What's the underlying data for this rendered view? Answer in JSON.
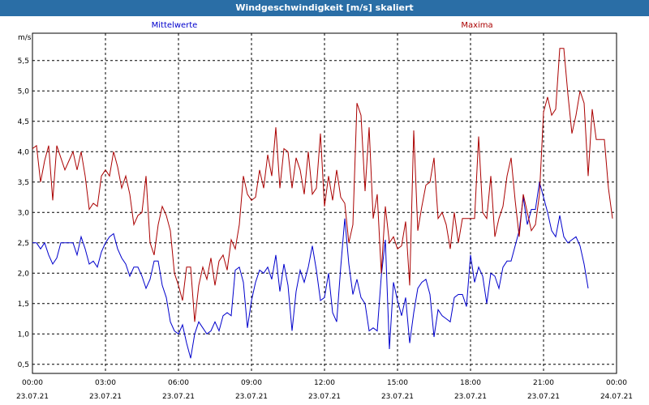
{
  "window": {
    "title": "Windgeschwindigkeit [m/s] skaliert"
  },
  "chart_data": {
    "type": "line",
    "title": "Windgeschwindigkeit [m/s] skaliert",
    "ylabel": "m/s",
    "xlabel": "",
    "ylim": [
      0.35,
      5.95
    ],
    "xlim": [
      0,
      24
    ],
    "grid": true,
    "y_ticks": [
      {
        "value": 0.5,
        "label": "0,5"
      },
      {
        "value": 1.0,
        "label": "1,0"
      },
      {
        "value": 1.5,
        "label": "1,5"
      },
      {
        "value": 2.0,
        "label": "2,0"
      },
      {
        "value": 2.5,
        "label": "2,5"
      },
      {
        "value": 3.0,
        "label": "3,0"
      },
      {
        "value": 3.5,
        "label": "3,5"
      },
      {
        "value": 4.0,
        "label": "4,0"
      },
      {
        "value": 4.5,
        "label": "4,5"
      },
      {
        "value": 5.0,
        "label": "5,0"
      },
      {
        "value": 5.5,
        "label": "5,5"
      }
    ],
    "x_ticks": [
      {
        "value": 0,
        "time": "00:00",
        "date": "23.07.21"
      },
      {
        "value": 3,
        "time": "03:00",
        "date": "23.07.21"
      },
      {
        "value": 6,
        "time": "06:00",
        "date": "23.07.21"
      },
      {
        "value": 9,
        "time": "09:00",
        "date": "23.07.21"
      },
      {
        "value": 12,
        "time": "12:00",
        "date": "23.07.21"
      },
      {
        "value": 15,
        "time": "15:00",
        "date": "23.07.21"
      },
      {
        "value": 18,
        "time": "18:00",
        "date": "23.07.21"
      },
      {
        "value": 21,
        "time": "21:00",
        "date": "23.07.21"
      },
      {
        "value": 24,
        "time": "00:00",
        "date": "24.07.21"
      }
    ],
    "x_step_hours": 0.16667,
    "series": [
      {
        "name": "Mittelwerte",
        "color": "#0000cc",
        "values": [
          2.5,
          2.5,
          2.4,
          2.5,
          2.3,
          2.15,
          2.25,
          2.5,
          2.5,
          2.5,
          2.5,
          2.3,
          2.6,
          2.4,
          2.15,
          2.2,
          2.1,
          2.35,
          2.5,
          2.6,
          2.65,
          2.4,
          2.25,
          2.15,
          1.95,
          2.1,
          2.1,
          1.95,
          1.75,
          1.9,
          2.2,
          2.2,
          1.8,
          1.6,
          1.2,
          1.05,
          1.0,
          1.15,
          0.85,
          0.6,
          1.0,
          1.2,
          1.1,
          1.0,
          1.05,
          1.2,
          1.05,
          1.3,
          1.35,
          1.3,
          2.05,
          2.1,
          1.85,
          1.1,
          1.55,
          1.85,
          2.05,
          2.0,
          2.1,
          1.9,
          2.3,
          1.7,
          2.15,
          1.8,
          1.05,
          1.7,
          2.05,
          1.85,
          2.1,
          2.45,
          2.05,
          1.55,
          1.6,
          2.0,
          1.35,
          1.2,
          2.1,
          2.9,
          2.15,
          1.65,
          1.9,
          1.6,
          1.5,
          1.05,
          1.1,
          1.05,
          1.95,
          2.55,
          0.75,
          1.85,
          1.55,
          1.3,
          1.6,
          0.85,
          1.35,
          1.75,
          1.85,
          1.9,
          1.65,
          0.95,
          1.4,
          1.3,
          1.25,
          1.2,
          1.6,
          1.65,
          1.65,
          1.45,
          2.3,
          1.85,
          2.1,
          1.95,
          1.5,
          2.0,
          1.95,
          1.75,
          2.1,
          2.2,
          2.2,
          2.45,
          2.7,
          3.25,
          2.8,
          3.05,
          3.05,
          3.5,
          3.25,
          3.0,
          2.7,
          2.6,
          2.95,
          2.6,
          2.5,
          2.55,
          2.6,
          2.45,
          2.15,
          1.75
        ]
      },
      {
        "name": "Maxima",
        "color": "#aa0000",
        "values": [
          4.05,
          4.1,
          3.5,
          3.85,
          4.1,
          3.2,
          4.1,
          3.9,
          3.7,
          3.85,
          4.0,
          3.7,
          4.0,
          3.6,
          3.05,
          3.15,
          3.1,
          3.6,
          3.7,
          3.6,
          4.0,
          3.75,
          3.4,
          3.6,
          3.3,
          2.8,
          2.95,
          3.0,
          3.6,
          2.5,
          2.3,
          2.8,
          3.1,
          2.95,
          2.7,
          2.0,
          1.8,
          1.55,
          2.1,
          2.1,
          1.2,
          1.8,
          2.1,
          1.9,
          2.25,
          1.8,
          2.2,
          2.3,
          2.05,
          2.55,
          2.4,
          2.8,
          3.6,
          3.3,
          3.2,
          3.25,
          3.7,
          3.4,
          3.95,
          3.6,
          4.4,
          3.4,
          4.05,
          4.0,
          3.4,
          3.9,
          3.7,
          3.3,
          4.0,
          3.3,
          3.4,
          4.3,
          3.1,
          3.6,
          3.2,
          3.7,
          3.25,
          3.15,
          2.5,
          2.8,
          4.8,
          4.6,
          3.35,
          4.4,
          2.9,
          3.3,
          2.0,
          3.1,
          2.5,
          2.6,
          2.4,
          2.45,
          2.85,
          1.8,
          4.35,
          2.7,
          3.1,
          3.45,
          3.5,
          3.9,
          2.9,
          3.0,
          2.8,
          2.4,
          3.0,
          2.5,
          2.9,
          2.9,
          2.9,
          2.9,
          4.25,
          3.0,
          2.9,
          3.6,
          2.6,
          2.9,
          3.1,
          3.6,
          3.9,
          3.2,
          2.6,
          3.3,
          3.0,
          2.7,
          2.8,
          3.3,
          4.65,
          4.9,
          4.6,
          4.7,
          5.7,
          5.7,
          4.95,
          4.3,
          4.6,
          5.0,
          4.8,
          3.6,
          4.7,
          4.2,
          4.2,
          4.2,
          3.4,
          2.9
        ]
      }
    ]
  }
}
